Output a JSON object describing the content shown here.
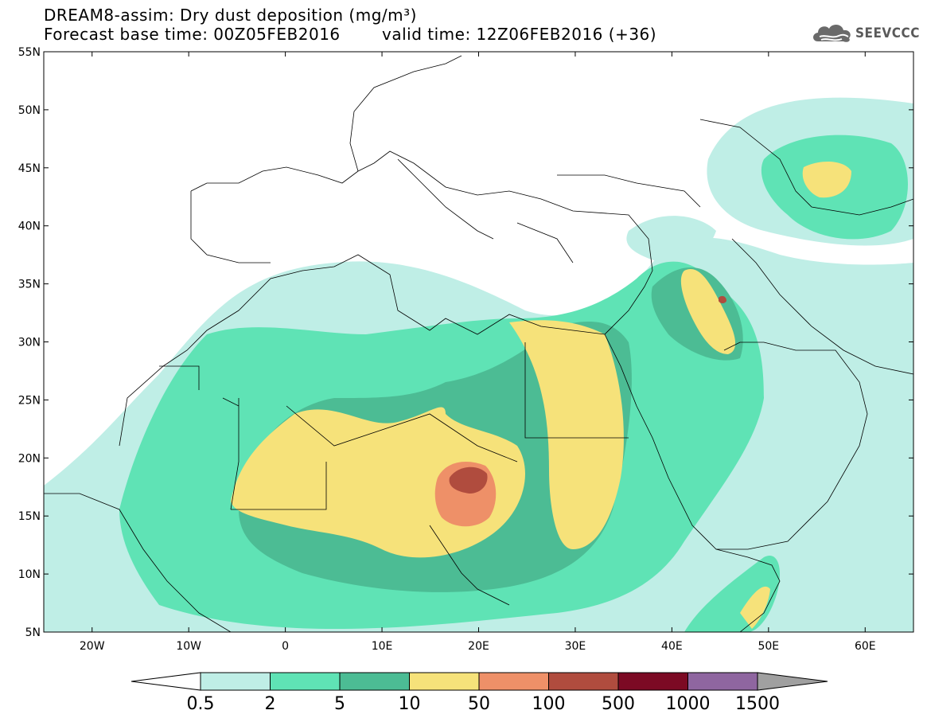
{
  "header": {
    "title": "DREAM8-assim: Dry dust deposition (mg/m³)",
    "forecast": "Forecast base time: 00Z05FEB2016",
    "valid": "valid time: 12Z06FEB2016 (+36)",
    "logo_text": "SEEVCCC"
  },
  "map": {
    "lon_range": [
      -25,
      65
    ],
    "lat_range": [
      5,
      55
    ],
    "lat_ticks": [
      "55N",
      "50N",
      "45N",
      "40N",
      "35N",
      "30N",
      "25N",
      "20N",
      "15N",
      "10N",
      "5N"
    ],
    "lon_ticks": [
      "20W",
      "10W",
      "0",
      "10E",
      "20E",
      "30E",
      "40E",
      "50E",
      "60E"
    ],
    "land_color": "#ffffff",
    "border_color": "#000000"
  },
  "legend": {
    "levels": [
      "0.5",
      "2",
      "5",
      "10",
      "50",
      "100",
      "500",
      "1000",
      "1500"
    ],
    "colors": [
      "#bfeee6",
      "#5fe3b5",
      "#4cbc94",
      "#f6e27a",
      "#ee9068",
      "#b04c3e",
      "#7c0a24",
      "#8f66a0",
      "#a0a0a0"
    ]
  }
}
